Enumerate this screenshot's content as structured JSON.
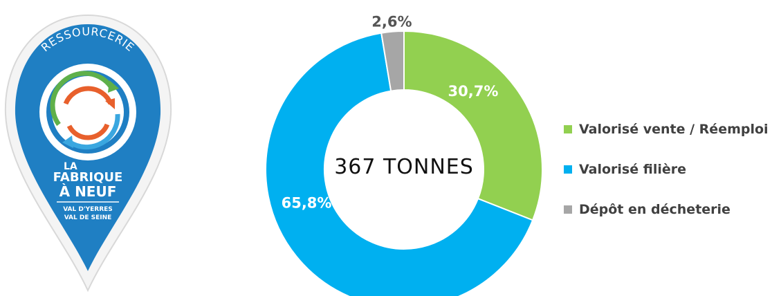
{
  "logo": {
    "arc_text": "RESSOURCERIE",
    "line1": "LA",
    "line2": "FABRIQUE",
    "line3": "À NEUF",
    "line4": "VAL D'YERRES",
    "line5": "VAL DE SEINE",
    "colors": {
      "primary": "#1f7fc3",
      "green": "#5fb04a",
      "orange": "#e8602c",
      "light_blue": "#3aa7e0"
    }
  },
  "chart_data": {
    "type": "pie",
    "center_label": "367 TONNES",
    "slices": [
      {
        "label": "Valorisé vente / Réemploi",
        "value": 30.7,
        "value_label": "30,7%",
        "color": "#92d050"
      },
      {
        "label": "Valorisé filière",
        "value": 65.8,
        "value_label": "65,8%",
        "color": "#00b0f0"
      },
      {
        "label": "Dépôt en décheterie",
        "value": 2.6,
        "value_label": "2,6%",
        "color": "#a6a6a6"
      }
    ],
    "legend_position": "right"
  }
}
